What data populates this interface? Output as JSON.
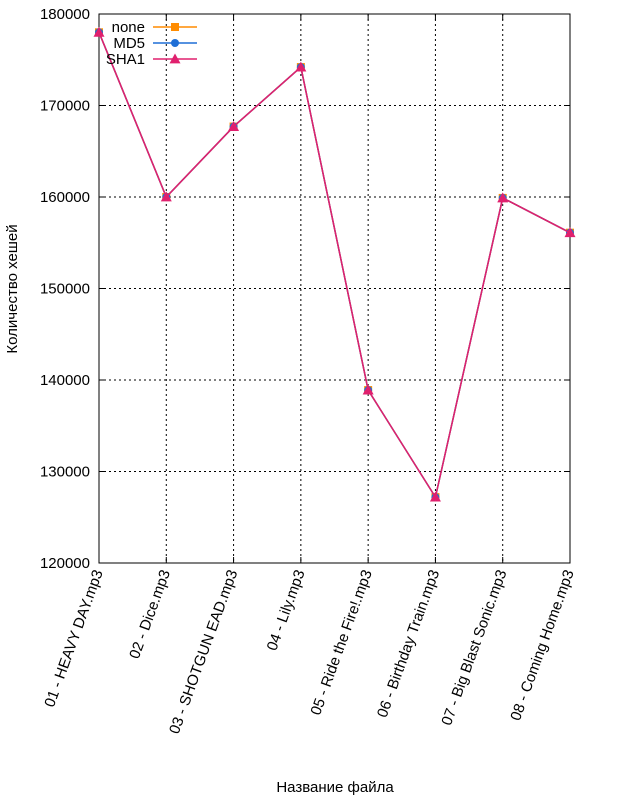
{
  "chart_data": {
    "type": "line",
    "title": "",
    "xlabel": "Название файла",
    "ylabel": "Количество хешей",
    "ylim": [
      120000,
      180000
    ],
    "yticks": [
      120000,
      130000,
      140000,
      150000,
      160000,
      170000,
      180000
    ],
    "ytick_labels": [
      "120000",
      "130000",
      "140000",
      "150000",
      "160000",
      "170000",
      "180000"
    ],
    "grid": true,
    "legend_position": "top-left",
    "categories": [
      "01 - HEAVY DAY.mp3",
      "02 - Dice.mp3",
      "03 - SHOTGUN EAD.mp3",
      "04 - Lily.mp3",
      "05 - Ride the Fire!.mp3",
      "06 - Birthday Train.mp3",
      "07 - Big Blast Sonic.mp3",
      "08 - Coming Home.mp3"
    ],
    "series": [
      {
        "name": "none",
        "color": "#ff8c00",
        "marker": "square",
        "values": [
          178000,
          160000,
          167700,
          174200,
          138900,
          127200,
          159900,
          156100
        ]
      },
      {
        "name": "MD5",
        "color": "#1f6fd6",
        "marker": "circle",
        "values": [
          178000,
          160000,
          167700,
          174200,
          138900,
          127200,
          159900,
          156100
        ]
      },
      {
        "name": "SHA1",
        "color": "#e0206e",
        "marker": "triangle",
        "values": [
          178000,
          160000,
          167700,
          174200,
          138900,
          127200,
          159900,
          156100
        ]
      }
    ]
  }
}
